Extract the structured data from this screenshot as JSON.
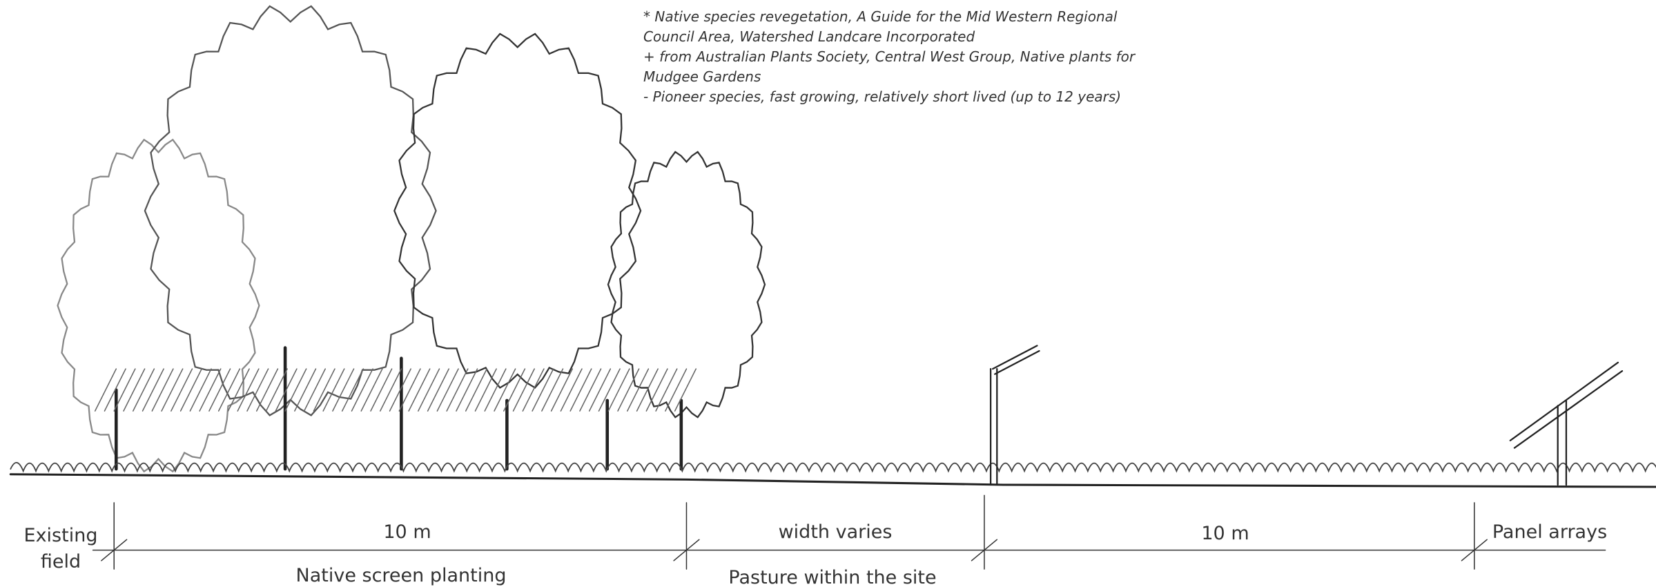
{
  "notes": [
    "* Native species revegetation, A Guide for the Mid Western Regional Council Area, Watershed Landcare Incorporated",
    "+ from Australian Plants Society, Central West Group, Native plants for Mudgee Gardens",
    "- Pioneer species, fast growing, relatively short lived (up to 12 years)"
  ],
  "edge_labels": {
    "left": "Existing field",
    "right": "Panel arrays"
  },
  "zones": [
    {
      "width": "10 m",
      "name": "Native screen planting"
    },
    {
      "width": "width varies",
      "name": "Pasture within the site"
    },
    {
      "width": "10 m"
    }
  ]
}
